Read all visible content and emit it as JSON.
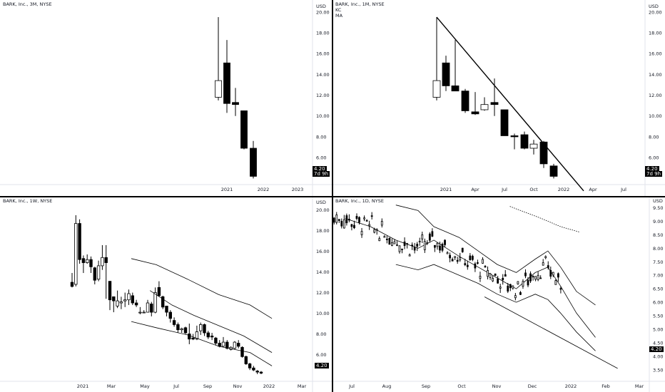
{
  "colors": {
    "up": "#ffffff",
    "down": "#000000",
    "line": "#000000"
  },
  "panes": [
    {
      "title": "BARK, Inc., 3M, NYSE",
      "subs": [],
      "currency": "USD",
      "price_label": "4.20",
      "countdown": "7d 9h",
      "chart_data": {
        "type": "candlestick",
        "y_ticks": [
          "20.00",
          "18.00",
          "16.00",
          "14.00",
          "12.00",
          "10.00",
          "8.00",
          "6.00"
        ],
        "x_ticks": [
          "2021",
          "2022",
          "2023"
        ],
        "candles": [
          {
            "o": 11.8,
            "h": 19.5,
            "l": 11.5,
            "c": 13.4
          },
          {
            "o": 15.1,
            "h": 17.3,
            "l": 10.3,
            "c": 11.2
          },
          {
            "o": 11.3,
            "h": 12.7,
            "l": 10.0,
            "c": 11.1
          },
          {
            "o": 10.5,
            "h": 10.5,
            "l": 6.8,
            "c": 6.9
          },
          {
            "o": 6.9,
            "h": 7.6,
            "l": 4.0,
            "c": 4.2
          }
        ]
      }
    },
    {
      "title": "BARK, Inc., 1M, NYSE",
      "subs": [
        "KC",
        "MA"
      ],
      "currency": "USD",
      "price_label": "4.20",
      "countdown": "7d 9h",
      "chart_data": {
        "type": "candlestick",
        "y_ticks": [
          "20.00",
          "18.00",
          "16.00",
          "14.00",
          "12.00",
          "10.00",
          "8.00",
          "6.00"
        ],
        "x_ticks": [
          "2021",
          "Apr",
          "Jul",
          "Oct",
          "2022",
          "Apr",
          "Jul"
        ],
        "candles": [
          {
            "o": 11.8,
            "h": 19.5,
            "l": 11.5,
            "c": 13.4
          },
          {
            "o": 15.1,
            "h": 15.8,
            "l": 12.4,
            "c": 12.9
          },
          {
            "o": 12.9,
            "h": 17.3,
            "l": 12.5,
            "c": 12.4
          },
          {
            "o": 12.4,
            "h": 12.6,
            "l": 10.3,
            "c": 10.5
          },
          {
            "o": 10.4,
            "h": 12.3,
            "l": 10.1,
            "c": 10.2
          },
          {
            "o": 10.6,
            "h": 11.8,
            "l": 10.5,
            "c": 11.1
          },
          {
            "o": 11.3,
            "h": 13.6,
            "l": 10.0,
            "c": 11.1
          },
          {
            "o": 10.6,
            "h": 10.6,
            "l": 8.1,
            "c": 8.1
          },
          {
            "o": 8.1,
            "h": 8.3,
            "l": 6.8,
            "c": 8.0
          },
          {
            "o": 8.2,
            "h": 8.5,
            "l": 6.8,
            "c": 6.9
          },
          {
            "o": 6.9,
            "h": 7.7,
            "l": 6.3,
            "c": 7.3
          },
          {
            "o": 7.5,
            "h": 7.6,
            "l": 5.0,
            "c": 5.4
          },
          {
            "o": 5.2,
            "h": 5.4,
            "l": 4.0,
            "c": 4.2
          }
        ]
      }
    },
    {
      "title": "BARK, Inc., 1W, NYSE",
      "subs": [],
      "currency": "USD",
      "price_label": "4.20",
      "countdown": "",
      "chart_data": {
        "type": "candlestick",
        "y_ticks": [
          "20.00",
          "18.00",
          "16.00",
          "14.00",
          "12.00",
          "10.00",
          "8.00",
          "6.00"
        ],
        "x_ticks": [
          "2021",
          "Mar",
          "May",
          "Jul",
          "Sep",
          "Nov",
          "2022",
          "Mar"
        ],
        "candles": [
          {
            "o": 13.0,
            "h": 13.9,
            "l": 12.5,
            "c": 12.6
          },
          {
            "o": 12.8,
            "h": 19.5,
            "l": 12.6,
            "c": 18.7
          },
          {
            "o": 18.7,
            "h": 19.1,
            "l": 14.8,
            "c": 15.2
          },
          {
            "o": 15.3,
            "h": 15.6,
            "l": 13.9,
            "c": 14.9
          },
          {
            "o": 14.9,
            "h": 15.7,
            "l": 14.8,
            "c": 15.2
          },
          {
            "o": 15.2,
            "h": 15.5,
            "l": 13.9,
            "c": 14.5
          },
          {
            "o": 14.4,
            "h": 14.5,
            "l": 12.8,
            "c": 13.2
          },
          {
            "o": 13.3,
            "h": 15.1,
            "l": 13.1,
            "c": 14.6
          },
          {
            "o": 14.6,
            "h": 16.6,
            "l": 14.2,
            "c": 15.4
          },
          {
            "o": 15.4,
            "h": 16.6,
            "l": 11.4,
            "c": 14.9
          },
          {
            "o": 13.1,
            "h": 13.1,
            "l": 10.3,
            "c": 11.3
          },
          {
            "o": 11.6,
            "h": 11.6,
            "l": 10.1,
            "c": 11.2
          },
          {
            "o": 10.7,
            "h": 12.2,
            "l": 10.5,
            "c": 11.2
          },
          {
            "o": 11.0,
            "h": 11.6,
            "l": 10.4,
            "c": 11.1
          },
          {
            "o": 11.2,
            "h": 12.0,
            "l": 10.6,
            "c": 11.3
          },
          {
            "o": 11.3,
            "h": 12.3,
            "l": 10.8,
            "c": 11.9
          },
          {
            "o": 11.7,
            "h": 12.0,
            "l": 10.8,
            "c": 11.0
          },
          {
            "o": 11.0,
            "h": 11.3,
            "l": 10.6,
            "c": 10.8
          },
          {
            "o": 10.1,
            "h": 10.6,
            "l": 9.9,
            "c": 10.1
          },
          {
            "o": 10.1,
            "h": 10.3,
            "l": 10.0,
            "c": 10.1
          },
          {
            "o": 10.1,
            "h": 11.3,
            "l": 10.1,
            "c": 11.0
          },
          {
            "o": 10.9,
            "h": 11.1,
            "l": 9.7,
            "c": 10.1
          },
          {
            "o": 10.1,
            "h": 12.5,
            "l": 10.0,
            "c": 12.0
          },
          {
            "o": 12.5,
            "h": 13.1,
            "l": 11.6,
            "c": 11.7
          },
          {
            "o": 11.6,
            "h": 11.7,
            "l": 10.4,
            "c": 10.6
          },
          {
            "o": 10.7,
            "h": 10.7,
            "l": 9.7,
            "c": 10.1
          },
          {
            "o": 10.1,
            "h": 10.3,
            "l": 9.1,
            "c": 9.5
          },
          {
            "o": 9.3,
            "h": 9.6,
            "l": 8.7,
            "c": 8.9
          },
          {
            "o": 8.9,
            "h": 9.1,
            "l": 8.1,
            "c": 8.4
          },
          {
            "o": 8.4,
            "h": 8.6,
            "l": 8.1,
            "c": 8.5
          },
          {
            "o": 8.6,
            "h": 8.7,
            "l": 8.0,
            "c": 8.1
          },
          {
            "o": 8.0,
            "h": 9.0,
            "l": 7.0,
            "c": 7.5
          },
          {
            "o": 7.6,
            "h": 8.0,
            "l": 7.4,
            "c": 7.5
          },
          {
            "o": 7.5,
            "h": 8.8,
            "l": 7.4,
            "c": 8.2
          },
          {
            "o": 8.3,
            "h": 9.1,
            "l": 7.9,
            "c": 8.9
          },
          {
            "o": 8.9,
            "h": 9.0,
            "l": 7.8,
            "c": 8.1
          },
          {
            "o": 8.1,
            "h": 8.3,
            "l": 7.5,
            "c": 7.7
          },
          {
            "o": 7.8,
            "h": 8.1,
            "l": 7.4,
            "c": 7.7
          },
          {
            "o": 7.6,
            "h": 7.7,
            "l": 6.9,
            "c": 7.1
          },
          {
            "o": 7.1,
            "h": 7.4,
            "l": 6.7,
            "c": 6.8
          },
          {
            "o": 6.8,
            "h": 7.7,
            "l": 6.7,
            "c": 7.2
          },
          {
            "o": 7.2,
            "h": 7.4,
            "l": 6.5,
            "c": 6.6
          },
          {
            "o": 6.5,
            "h": 6.8,
            "l": 6.4,
            "c": 6.7
          },
          {
            "o": 6.6,
            "h": 7.3,
            "l": 6.5,
            "c": 7.2
          },
          {
            "o": 7.1,
            "h": 7.4,
            "l": 6.6,
            "c": 6.8
          },
          {
            "o": 6.7,
            "h": 6.8,
            "l": 5.7,
            "c": 5.8
          },
          {
            "o": 5.8,
            "h": 5.9,
            "l": 5.0,
            "c": 5.1
          },
          {
            "o": 5.1,
            "h": 5.2,
            "l": 4.5,
            "c": 4.7
          },
          {
            "o": 4.7,
            "h": 4.9,
            "l": 4.4,
            "c": 4.5
          },
          {
            "o": 4.4,
            "h": 4.5,
            "l": 4.1,
            "c": 4.3
          },
          {
            "o": 4.3,
            "h": 4.4,
            "l": 4.1,
            "c": 4.2
          }
        ],
        "upper_band": [
          [
            0.42,
            15.3
          ],
          [
            0.5,
            14.7
          ],
          [
            0.6,
            13.3
          ],
          [
            0.7,
            11.8
          ],
          [
            0.8,
            10.8
          ],
          [
            0.87,
            9.5
          ]
        ],
        "mid_band": [
          [
            0.48,
            12.2
          ],
          [
            0.55,
            10.8
          ],
          [
            0.62,
            9.8
          ],
          [
            0.7,
            8.8
          ],
          [
            0.78,
            7.8
          ],
          [
            0.87,
            6.2
          ]
        ],
        "lower_band": [
          [
            0.42,
            9.2
          ],
          [
            0.5,
            8.6
          ],
          [
            0.6,
            7.9
          ],
          [
            0.7,
            6.8
          ],
          [
            0.8,
            6.2
          ],
          [
            0.87,
            4.9
          ]
        ]
      }
    },
    {
      "title": "BARK, Inc., 1D, NYSE",
      "subs": [],
      "currency": "USD",
      "price_label": "4.20",
      "countdown": "",
      "chart_data": {
        "type": "candlestick",
        "y_ticks": [
          "9.50",
          "9.00",
          "8.50",
          "8.00",
          "7.50",
          "7.00",
          "6.50",
          "6.00",
          "5.50",
          "5.00",
          "4.50",
          "4.00",
          "3.50"
        ],
        "x_ticks": [
          "Jul",
          "Aug",
          "Sep",
          "Oct",
          "Nov",
          "Dec",
          "2022",
          "Feb",
          "Mar"
        ],
        "upper_band": [
          [
            0.2,
            9.6
          ],
          [
            0.27,
            9.4
          ],
          [
            0.32,
            8.8
          ],
          [
            0.4,
            8.4
          ],
          [
            0.46,
            7.9
          ],
          [
            0.52,
            7.4
          ],
          [
            0.58,
            7.1
          ],
          [
            0.64,
            7.6
          ],
          [
            0.68,
            7.9
          ],
          [
            0.72,
            7.3
          ],
          [
            0.77,
            6.4
          ],
          [
            0.83,
            5.9
          ]
        ],
        "mid_band": [
          [
            0.04,
            9.1
          ],
          [
            0.12,
            8.8
          ],
          [
            0.2,
            8.3
          ],
          [
            0.27,
            8.0
          ],
          [
            0.32,
            8.3
          ],
          [
            0.4,
            7.7
          ],
          [
            0.46,
            7.3
          ],
          [
            0.52,
            6.9
          ],
          [
            0.58,
            6.5
          ],
          [
            0.64,
            7.1
          ],
          [
            0.68,
            7.3
          ],
          [
            0.72,
            6.6
          ],
          [
            0.77,
            5.6
          ],
          [
            0.83,
            4.7
          ]
        ],
        "lower_band": [
          [
            0.2,
            7.4
          ],
          [
            0.27,
            7.2
          ],
          [
            0.32,
            7.4
          ],
          [
            0.4,
            7.0
          ],
          [
            0.46,
            6.7
          ],
          [
            0.52,
            6.3
          ],
          [
            0.58,
            6.0
          ],
          [
            0.64,
            6.3
          ],
          [
            0.68,
            6.1
          ],
          [
            0.72,
            5.6
          ],
          [
            0.77,
            4.9
          ],
          [
            0.83,
            4.2
          ]
        ],
        "dotted_ma": [
          [
            0.56,
            9.55
          ],
          [
            0.66,
            9.1
          ],
          [
            0.72,
            8.8
          ],
          [
            0.78,
            8.6
          ]
        ],
        "trendline": [
          [
            0.48,
            6.2
          ],
          [
            0.9,
            3.55
          ]
        ]
      }
    }
  ]
}
